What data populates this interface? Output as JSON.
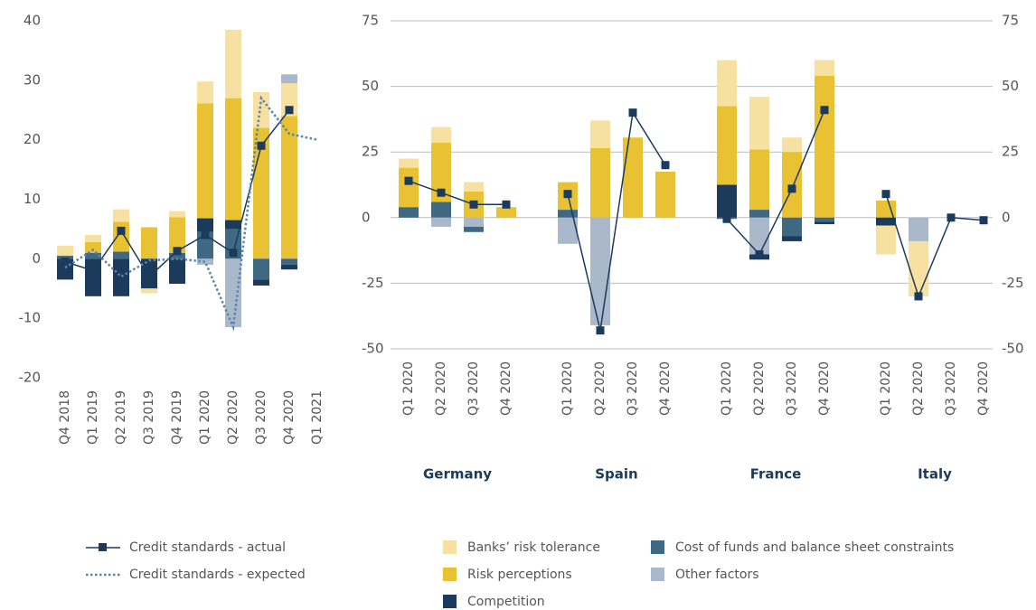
{
  "chart_data": [
    {
      "type": "combo",
      "categories": [
        "Q4 2018",
        "Q1 2019",
        "Q2 2019",
        "Q3 2019",
        "Q4 2019",
        "Q1 2020",
        "Q2 2020",
        "Q3 2020",
        "Q4 2020",
        "Q1 2021"
      ],
      "ylim": [
        -20,
        40
      ],
      "yticks": [
        -20,
        -10,
        0,
        10,
        20,
        30,
        40
      ],
      "grid": false,
      "series": [
        {
          "name": "Banks’ risk tolerance",
          "color": "#f6e0a2",
          "kind": "bar",
          "values": [
            1.7,
            1.2,
            2.1,
            -0.8,
            1,
            3.7,
            11.5,
            6,
            5.5,
            null
          ]
        },
        {
          "name": "Risk perceptions",
          "color": "#e8c232",
          "kind": "bar",
          "values": [
            null,
            1.8,
            5,
            5.3,
            6,
            19.3,
            20.5,
            22,
            24,
            null
          ]
        },
        {
          "name": "Competition",
          "color": "#1b3a5c",
          "kind": "bar",
          "values": [
            -3.5,
            -6.3,
            -6.3,
            -5,
            -4.2,
            2.3,
            1.5,
            -1,
            -0.8,
            null
          ]
        },
        {
          "name": "Cost of funds and balance sheet constraints",
          "color": "#3f6882",
          "kind": "bar",
          "values": [
            0.5,
            1,
            1.2,
            null,
            1,
            4.5,
            5,
            -3.5,
            -1,
            null
          ]
        },
        {
          "name": "Other factors",
          "color": "#a9b8cb",
          "kind": "bar",
          "values": [
            null,
            null,
            null,
            null,
            null,
            -1,
            -11.5,
            null,
            1.5,
            null
          ]
        },
        {
          "name": "Credit standards - actual",
          "color": "#1b3a5c",
          "kind": "line",
          "values": [
            -0.5,
            -2,
            4.7,
            -3,
            1.3,
            4,
            1,
            19,
            25,
            null
          ]
        },
        {
          "name": "Credit standards - expected",
          "color": "#5b84a8",
          "kind": "line",
          "dash": true,
          "values": [
            -1.5,
            1.5,
            -3,
            -0.3,
            0,
            -0.5,
            -11.5,
            27,
            21,
            20
          ]
        }
      ]
    },
    {
      "type": "combo",
      "groups": [
        "Germany",
        "Spain",
        "France",
        "Italy"
      ],
      "categories": [
        "Q1 2020",
        "Q2 2020",
        "Q3 2020",
        "Q4 2020",
        "Q1 2020",
        "Q2 2020",
        "Q3 2020",
        "Q4 2020",
        "Q1 2020",
        "Q2 2020",
        "Q3 2020",
        "Q4 2020",
        "Q1 2020",
        "Q2 2020",
        "Q3 2020",
        "Q4 2020"
      ],
      "ylim": [
        -50,
        75
      ],
      "yticks": [
        -50,
        -25,
        0,
        25,
        50,
        75
      ],
      "y2lim": [
        -50,
        75
      ],
      "y2ticks": [
        -50,
        -25,
        0,
        25,
        50,
        75
      ],
      "grid": true,
      "series": [
        {
          "name": "Banks’ risk tolerance",
          "color": "#f6e0a2",
          "kind": "bar",
          "values": [
            3.5,
            6,
            3.5,
            null,
            null,
            10.5,
            null,
            null,
            17.5,
            20,
            5.5,
            6,
            -11,
            -21,
            null,
            null
          ]
        },
        {
          "name": "Risk perceptions",
          "color": "#e8c232",
          "kind": "bar",
          "values": [
            15,
            22.5,
            10,
            4,
            10.5,
            26.5,
            30.5,
            17.5,
            30,
            23,
            25,
            54,
            6.5,
            null,
            null,
            null
          ]
        },
        {
          "name": "Competition",
          "color": "#1b3a5c",
          "kind": "bar",
          "values": [
            null,
            null,
            null,
            null,
            null,
            null,
            null,
            null,
            12.5,
            -2,
            -2,
            -1,
            -3,
            null,
            null,
            null
          ]
        },
        {
          "name": "Cost of funds and balance sheet constraints",
          "color": "#3f6882",
          "kind": "bar",
          "values": [
            4,
            6,
            -2,
            null,
            3,
            null,
            null,
            null,
            -0.5,
            3,
            -7,
            -1.5,
            null,
            null,
            null,
            null
          ]
        },
        {
          "name": "Other factors",
          "color": "#a9b8cb",
          "kind": "bar",
          "values": [
            null,
            -3.5,
            -3.5,
            null,
            -10,
            -41,
            null,
            null,
            null,
            -14,
            null,
            null,
            null,
            -9,
            null,
            null
          ]
        },
        {
          "name": "Credit standards - actual",
          "color": "#1b3a5c",
          "kind": "line",
          "values": [
            14,
            9.5,
            5,
            5,
            9,
            -43,
            40,
            20,
            -0.5,
            -14,
            11,
            41,
            9,
            -30,
            0,
            -1
          ]
        }
      ]
    }
  ]
}
